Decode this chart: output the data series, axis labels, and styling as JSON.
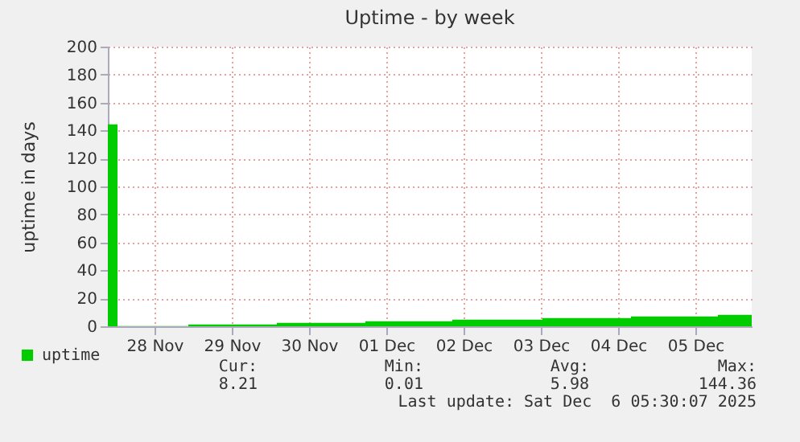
{
  "chart_data": {
    "type": "area",
    "title": "Uptime - by week",
    "ylabel": "uptime in days",
    "x": [
      "2025-11-27T21:30",
      "2025-11-28T00:30",
      "2025-11-28T22:30",
      "2025-11-30T02:00",
      "2025-12-01T05:30",
      "2025-12-02T08:30",
      "2025-12-03T12:30",
      "2025-12-04T16:00",
      "2025-12-05T19:00",
      "2025-12-06T05:30"
    ],
    "series": [
      {
        "name": "uptime",
        "color": "#00cc00",
        "values": [
          144.36,
          0.15,
          1.3,
          2.4,
          3.6,
          4.7,
          5.9,
          7.0,
          8.21,
          8.21
        ]
      }
    ],
    "xlim": [
      "2025-11-27T21:30",
      "2025-12-06T05:30"
    ],
    "xticks": [
      {
        "value": "2025-11-28T12:00",
        "label": "28 Nov"
      },
      {
        "value": "2025-11-29T12:00",
        "label": "29 Nov"
      },
      {
        "value": "2025-11-30T12:00",
        "label": "30 Nov"
      },
      {
        "value": "2025-12-01T12:00",
        "label": "01 Dec"
      },
      {
        "value": "2025-12-02T12:00",
        "label": "02 Dec"
      },
      {
        "value": "2025-12-03T12:00",
        "label": "03 Dec"
      },
      {
        "value": "2025-12-04T12:00",
        "label": "04 Dec"
      },
      {
        "value": "2025-12-05T12:00",
        "label": "05 Dec"
      }
    ],
    "ylim": [
      0,
      200
    ],
    "yticks": [
      0,
      20,
      40,
      60,
      80,
      100,
      120,
      140,
      160,
      180,
      200
    ],
    "grid": true,
    "legend": "bottom left",
    "annotations": [
      "Cur:",
      "Min:",
      "Avg:",
      "Max:",
      "8.21",
      "0.01",
      "5.98",
      "144.36",
      "Last update: Sat Dec  6 05:30:07 2025"
    ]
  }
}
